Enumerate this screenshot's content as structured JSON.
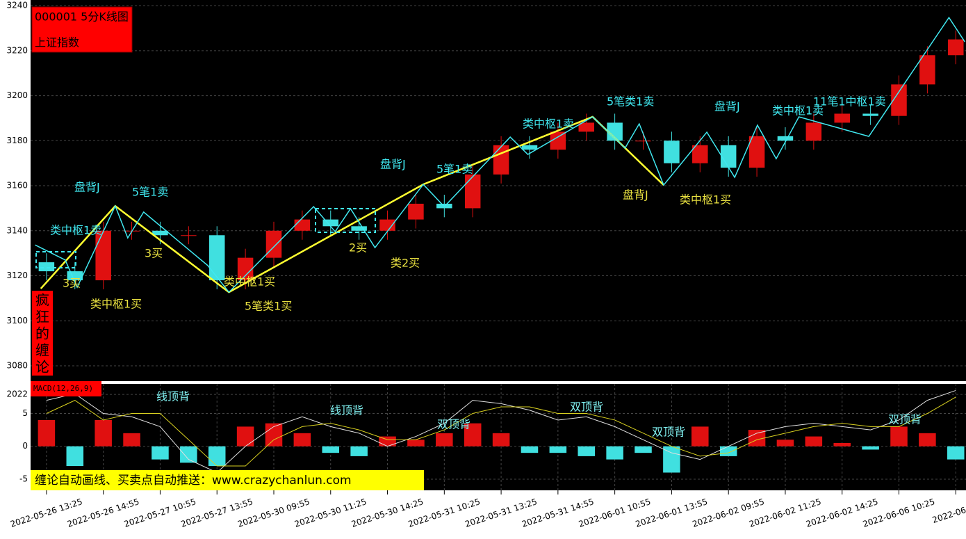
{
  "chart_data": [
    {
      "type": "candlestick",
      "title": "000001  5分K线图",
      "subtitle": "上证指数",
      "watermark": "疯狂的缠论",
      "banner": "缠论自动画线、买卖点自动推送：www.crazychanlun.com",
      "xticks": [
        {
          "value": 0,
          "label": "2022-05-26 13:25"
        },
        {
          "value": 1,
          "label": "2022-05-26 14:55"
        },
        {
          "value": 2,
          "label": "2022-05-27 10:55"
        },
        {
          "value": 3,
          "label": "2022-05-27 13:55"
        },
        {
          "value": 4,
          "label": "2022-05-30 09:55"
        },
        {
          "value": 5,
          "label": "2022-05-30 11:25"
        },
        {
          "value": 6,
          "label": "2022-05-30 14:25"
        },
        {
          "value": 7,
          "label": "2022-05-31 10:25"
        },
        {
          "value": 8,
          "label": "2022-05-31 13:25"
        },
        {
          "value": 9,
          "label": "2022-05-31 14:55"
        },
        {
          "value": 10,
          "label": "2022-06-01 10:55"
        },
        {
          "value": 11,
          "label": "2022-06-01 13:55"
        },
        {
          "value": 12,
          "label": "2022-06-02 09:55"
        },
        {
          "value": 13,
          "label": "2022-06-02 11:25"
        },
        {
          "value": 14,
          "label": "2022-06-02 14:25"
        },
        {
          "value": 15,
          "label": "2022-06-06 10:25"
        },
        {
          "value": 16,
          "label": "2022-06-06"
        }
      ],
      "xlim": [
        -0.28,
        16.18
      ],
      "ylim": [
        3073.2,
        3242.5
      ],
      "yticks": [
        3080,
        3100,
        3120,
        3140,
        3160,
        3180,
        3200,
        3220,
        3240
      ],
      "grid": true,
      "x": [
        0,
        0.5,
        1,
        1.5,
        2,
        2.5,
        3,
        3.5,
        4,
        4.5,
        5,
        5.5,
        6,
        6.5,
        7,
        7.5,
        8,
        8.5,
        9,
        9.5,
        10,
        10.5,
        11,
        11.5,
        12,
        12.5,
        13,
        13.5,
        14,
        14.5,
        15,
        15.5,
        16
      ],
      "open": [
        3126,
        3122,
        3118,
        3140,
        3140,
        3138,
        3138,
        3118,
        3128,
        3140,
        3145,
        3142,
        3140,
        3145,
        3152,
        3150,
        3165,
        3178,
        3176,
        3184,
        3188,
        3180,
        3180,
        3170,
        3178,
        3168,
        3182,
        3180,
        3188,
        3192,
        3191,
        3205,
        3218
      ],
      "close": [
        3122,
        3118,
        3140,
        3140,
        3138,
        3138,
        3118,
        3128,
        3140,
        3145,
        3142,
        3140,
        3145,
        3152,
        3150,
        3165,
        3178,
        3176,
        3184,
        3188,
        3180,
        3180,
        3170,
        3178,
        3168,
        3182,
        3180,
        3188,
        3192,
        3191,
        3205,
        3218,
        3225
      ],
      "high": [
        3130,
        3126,
        3144,
        3144,
        3144,
        3142,
        3142,
        3132,
        3144,
        3149,
        3149,
        3146,
        3149,
        3156,
        3156,
        3169,
        3182,
        3182,
        3188,
        3192,
        3192,
        3184,
        3184,
        3182,
        3182,
        3186,
        3186,
        3192,
        3196,
        3196,
        3209,
        3222,
        3229
      ],
      "low": [
        3118,
        3114,
        3114,
        3136,
        3134,
        3134,
        3114,
        3114,
        3124,
        3136,
        3138,
        3136,
        3136,
        3141,
        3146,
        3146,
        3161,
        3172,
        3172,
        3180,
        3176,
        3176,
        3166,
        3166,
        3164,
        3164,
        3176,
        3176,
        3184,
        3187,
        3187,
        3201,
        3214
      ],
      "up_color": "#e01010",
      "down_color": "#40e0e0",
      "series": [
        {
          "color": "#ffff30",
          "x": [
            -0.1,
            1.21,
            3.21,
            6.63,
            9.61,
            10.86
          ],
          "values": [
            3114.3,
            3151.0,
            3112.7,
            3160.6,
            3190.6,
            3160.3
          ]
        },
        {
          "color": "#40e8f0",
          "x": [
            -0.2,
            0.33,
            0.54,
            1.21,
            1.43,
            1.71,
            2.84,
            3.21,
            4.7,
            5.08,
            5.35,
            5.78,
            6.63,
            7.0,
            8.16,
            8.47,
            9.61,
            10.18,
            10.43,
            10.86,
            11.62,
            12.11,
            12.51,
            12.84,
            13.24,
            14.47,
            15.88,
            16.16
          ],
          "values": [
            3133.7,
            3127.0,
            3114.9,
            3151.0,
            3136.8,
            3148.3,
            3124.5,
            3112.7,
            3150.7,
            3139.6,
            3149.8,
            3132.5,
            3160.6,
            3150.7,
            3181.6,
            3173.9,
            3190.6,
            3176.7,
            3187.5,
            3160.3,
            3183.8,
            3163.7,
            3186.9,
            3172.0,
            3190.6,
            3181.9,
            3234.7,
            3223.9
          ]
        }
      ],
      "annotations": [
        "类中枢1卖",
        "盘背J",
        "5笔1卖",
        "3买",
        "3买",
        "类中枢1买",
        "类中枢1买",
        "5笔类1买",
        "2买",
        "类2买",
        "盘背J",
        "5笔1卖",
        "类中枢1卖",
        "5笔类1卖",
        "盘背J",
        "类中枢1买",
        "盘背J",
        "类中枢1卖",
        "11笔1中枢1卖"
      ]
    },
    {
      "type": "macd",
      "title": "MACD(12,26,9)",
      "xlim": [
        -0.28,
        16.18
      ],
      "ylim": [
        -6.7,
        9.5
      ],
      "yticks": [
        {
          "value": 7.9,
          "label": "2022"
        },
        5,
        0,
        -5
      ],
      "x": [
        0,
        0.5,
        1,
        1.5,
        2,
        2.5,
        3,
        3.5,
        4,
        4.5,
        5,
        5.5,
        6,
        6.5,
        7,
        7.5,
        8,
        8.5,
        9,
        9.5,
        10,
        10.5,
        11,
        11.5,
        12,
        12.5,
        13,
        13.5,
        14,
        14.5,
        15,
        15.5,
        16
      ],
      "values": [
        4,
        -3,
        4,
        2,
        -2,
        -2.5,
        -3,
        3,
        3.5,
        2,
        -1,
        -1.5,
        1.5,
        1,
        2,
        3.5,
        2,
        -1,
        -1,
        -1.5,
        -2,
        -1,
        -4,
        3,
        -1.5,
        2.5,
        1,
        1.5,
        0.5,
        -0.5,
        3,
        2,
        -2
      ],
      "up_color": "#e01010",
      "down_color": "#40e0e0",
      "series": [
        {
          "color": "#e0e0e0",
          "values": [
            7,
            8,
            5,
            4.5,
            3,
            -2,
            -4,
            0,
            3,
            4.5,
            3,
            2,
            0,
            1.5,
            3.5,
            7,
            6.5,
            5.5,
            4,
            4.5,
            3,
            1,
            -1,
            -2,
            0,
            2,
            3,
            3.5,
            3,
            2.5,
            4,
            7,
            8.5
          ]
        },
        {
          "color": "#d8d020",
          "values": [
            5,
            7,
            4,
            5,
            5,
            1,
            -3,
            -3,
            1,
            3,
            3.5,
            2.5,
            1,
            1,
            2.5,
            5,
            6,
            6,
            5,
            5,
            4,
            2,
            0,
            -1.5,
            -1,
            1,
            2,
            3,
            3.5,
            3,
            3,
            5,
            7.5
          ]
        }
      ],
      "annotations": [
        "线顶背",
        "线顶背",
        "双顶背",
        "双顶背",
        "双顶背",
        "双顶背"
      ]
    }
  ]
}
